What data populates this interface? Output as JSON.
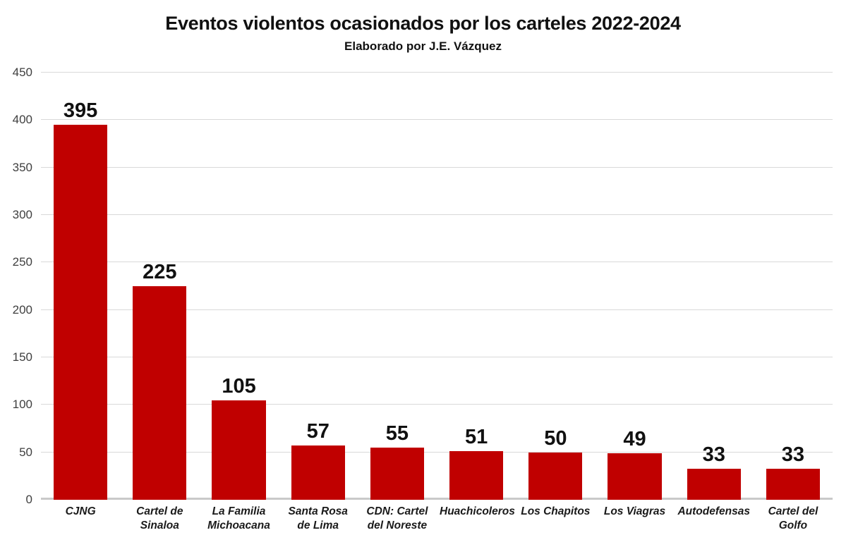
{
  "title": "Eventos violentos ocasionados por los carteles 2022-2024",
  "subtitle": "Elaborado por J.E. Vázquez",
  "colors": {
    "bar": "#c00000",
    "gridline": "#d9d9d9",
    "baseline": "#c9c9c9",
    "title_text": "#111111",
    "tick_text": "#3f3f3f"
  },
  "chart_data": {
    "type": "bar",
    "title": "Eventos violentos ocasionados por los carteles 2022-2024",
    "subtitle": "Elaborado por J.E. Vázquez",
    "categories": [
      "CJNG",
      "Cartel de Sinaloa",
      "La Familia Michoacana",
      "Santa Rosa de Lima",
      "CDN: Cartel del Noreste",
      "Huachicoleros",
      "Los Chapitos",
      "Los Viagras",
      "Autodefensas",
      "Cartel del Golfo"
    ],
    "values": [
      395,
      225,
      105,
      57,
      55,
      51,
      50,
      49,
      33,
      33
    ],
    "data_labels": [
      "395",
      "225",
      "105",
      "57",
      "55",
      "51",
      "50",
      "49",
      "33",
      "33"
    ],
    "xlabel": "",
    "ylabel": "",
    "ylim": [
      0,
      450
    ],
    "yticks": [
      0,
      50,
      100,
      150,
      200,
      250,
      300,
      350,
      400,
      450
    ],
    "grid": true,
    "legend": false,
    "bar_color": "#c00000"
  }
}
